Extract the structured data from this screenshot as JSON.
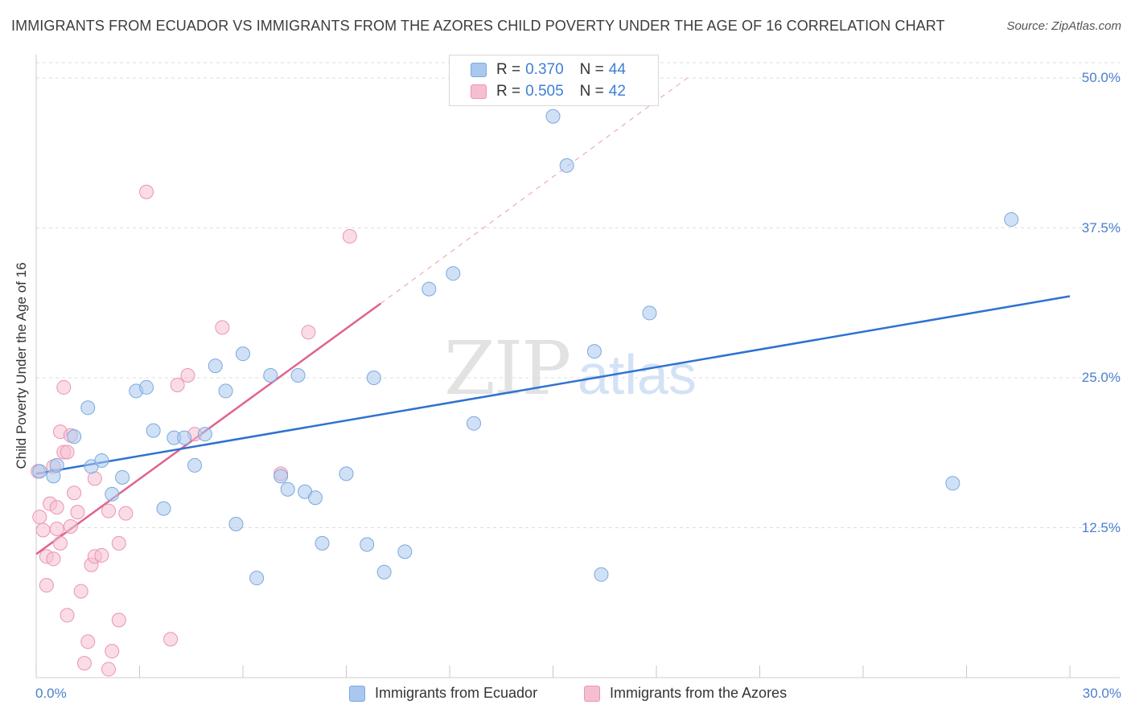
{
  "title": "IMMIGRANTS FROM ECUADOR VS IMMIGRANTS FROM THE AZORES CHILD POVERTY UNDER THE AGE OF 16 CORRELATION CHART",
  "source": "Source: ZipAtlas.com",
  "watermark": {
    "zip": "ZIP",
    "atlas": "atlas"
  },
  "legend": {
    "r_label": "R =",
    "n_label": "N =",
    "rows": [
      {
        "r": "0.370",
        "n": "44"
      },
      {
        "r": "0.505",
        "n": "42"
      }
    ]
  },
  "colors": {
    "ecuador_fill": "#a9c8ef",
    "ecuador_stroke": "#7aa8e0",
    "ecuador_line": "#2e72cf",
    "azores_fill": "#f6bfd0",
    "azores_stroke": "#e995b1",
    "azores_line": "#e0628f",
    "grid": "#dddddd",
    "tick_text": "#4a7fd1"
  },
  "chart_data": {
    "type": "scatter",
    "title": "IMMIGRANTS FROM ECUADOR VS IMMIGRANTS FROM THE AZORES CHILD POVERTY UNDER THE AGE OF 16 CORRELATION CHART",
    "xlabel": "",
    "ylabel": "Child Poverty Under the Age of 16",
    "xlim": [
      0,
      30
    ],
    "ylim": [
      0,
      50
    ],
    "x_tick_labels": [
      "0.0%",
      "30.0%"
    ],
    "y_ticks": [
      12.5,
      25.0,
      37.5,
      50.0
    ],
    "y_tick_labels": [
      "12.5%",
      "25.0%",
      "37.5%",
      "50.0%"
    ],
    "legend_position": "top-center",
    "series": [
      {
        "name": "Immigrants from Ecuador",
        "r": 0.37,
        "n": 44,
        "trend": {
          "x0": 0,
          "y0": 17.0,
          "x1": 30,
          "y1": 31.8
        },
        "points": [
          [
            0.1,
            17.2
          ],
          [
            0.5,
            16.8
          ],
          [
            0.6,
            17.7
          ],
          [
            1.1,
            20.1
          ],
          [
            1.5,
            22.5
          ],
          [
            1.6,
            17.6
          ],
          [
            1.9,
            18.1
          ],
          [
            2.2,
            15.3
          ],
          [
            2.5,
            16.7
          ],
          [
            2.9,
            23.9
          ],
          [
            3.2,
            24.2
          ],
          [
            3.4,
            20.6
          ],
          [
            3.7,
            14.1
          ],
          [
            4.0,
            20.0
          ],
          [
            4.3,
            20.0
          ],
          [
            4.6,
            17.7
          ],
          [
            4.9,
            20.3
          ],
          [
            5.2,
            26.0
          ],
          [
            5.5,
            23.9
          ],
          [
            5.8,
            12.8
          ],
          [
            6.0,
            27.0
          ],
          [
            6.4,
            8.3
          ],
          [
            6.8,
            25.2
          ],
          [
            7.1,
            16.8
          ],
          [
            7.3,
            15.7
          ],
          [
            7.6,
            25.2
          ],
          [
            7.8,
            15.5
          ],
          [
            8.1,
            15.0
          ],
          [
            8.3,
            11.2
          ],
          [
            9.0,
            17.0
          ],
          [
            9.6,
            11.1
          ],
          [
            9.8,
            25.0
          ],
          [
            10.1,
            8.8
          ],
          [
            10.7,
            10.5
          ],
          [
            11.4,
            32.4
          ],
          [
            12.1,
            33.7
          ],
          [
            12.7,
            21.2
          ],
          [
            15.0,
            46.8
          ],
          [
            15.4,
            42.7
          ],
          [
            16.2,
            27.2
          ],
          [
            16.4,
            8.6
          ],
          [
            17.8,
            30.4
          ],
          [
            26.6,
            16.2
          ],
          [
            28.3,
            38.2
          ]
        ]
      },
      {
        "name": "Immigrants from the Azores",
        "r": 0.505,
        "n": 42,
        "trend": {
          "x0": 0,
          "y0": 10.3,
          "x1": 10.0,
          "y1": 31.2,
          "dash_to": {
            "x": 18.9,
            "y": 50.0
          }
        },
        "points": [
          [
            0.1,
            13.4
          ],
          [
            0.2,
            12.3
          ],
          [
            0.3,
            10.1
          ],
          [
            0.3,
            7.7
          ],
          [
            0.4,
            14.5
          ],
          [
            0.5,
            17.6
          ],
          [
            0.5,
            9.9
          ],
          [
            0.6,
            14.2
          ],
          [
            0.6,
            12.4
          ],
          [
            0.7,
            11.2
          ],
          [
            0.7,
            20.5
          ],
          [
            0.8,
            18.8
          ],
          [
            0.8,
            24.2
          ],
          [
            0.9,
            18.8
          ],
          [
            0.9,
            5.2
          ],
          [
            1.0,
            12.6
          ],
          [
            1.0,
            20.2
          ],
          [
            1.1,
            15.4
          ],
          [
            1.2,
            13.8
          ],
          [
            1.3,
            7.2
          ],
          [
            1.4,
            1.2
          ],
          [
            1.5,
            3.0
          ],
          [
            1.6,
            9.4
          ],
          [
            1.7,
            10.1
          ],
          [
            1.7,
            16.6
          ],
          [
            1.9,
            10.2
          ],
          [
            2.1,
            0.7
          ],
          [
            2.1,
            13.9
          ],
          [
            2.2,
            2.2
          ],
          [
            2.4,
            4.8
          ],
          [
            2.4,
            11.2
          ],
          [
            2.6,
            13.7
          ],
          [
            3.2,
            40.5
          ],
          [
            3.9,
            3.2
          ],
          [
            4.1,
            24.4
          ],
          [
            4.4,
            25.2
          ],
          [
            4.6,
            20.3
          ],
          [
            5.4,
            29.2
          ],
          [
            7.1,
            17.0
          ],
          [
            7.9,
            28.8
          ],
          [
            9.1,
            36.8
          ],
          [
            0.05,
            17.2
          ]
        ]
      }
    ]
  },
  "bottom_legend": [
    {
      "label": "Immigrants from Ecuador"
    },
    {
      "label": "Immigrants from the Azores"
    }
  ]
}
